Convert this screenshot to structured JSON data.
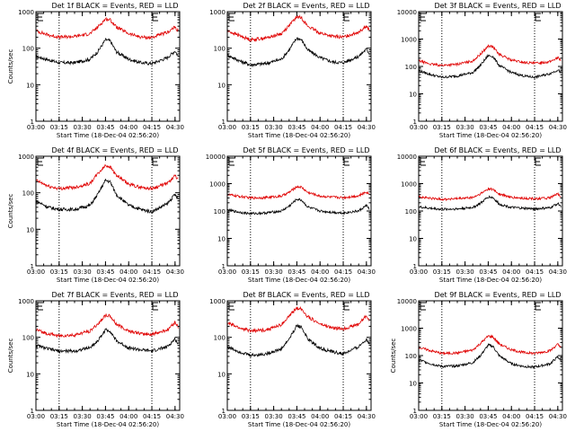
{
  "colors": {
    "events": "#000000",
    "lld": "#e00000",
    "axis": "#000000",
    "marker": "#000000"
  },
  "chart_data": [
    {
      "type": "line",
      "title": "Det 1f BLACK = Events, RED = LLD",
      "xlabel": "Start Time (18-Dec-04 02:56:20)",
      "ylabel": "Counts/sec",
      "yscale": "log",
      "ylim": [
        1,
        1000
      ],
      "y_ticks": [
        "1",
        "10",
        "100",
        "1000"
      ],
      "x_ticks": [
        "03:00",
        "03:15",
        "03:30",
        "03:45",
        "04:00",
        "04:15",
        "04:30"
      ],
      "xlim_hours": [
        3.0,
        4.55
      ],
      "marker_lines": [
        "03:15",
        "04:15"
      ],
      "grid": false,
      "legend": "none",
      "series": [
        {
          "name": "Events",
          "x": [
            "03:00",
            "03:08",
            "03:15",
            "03:25",
            "03:35",
            "03:40",
            "03:45",
            "03:48",
            "03:52",
            "04:00",
            "04:08",
            "04:15",
            "04:25",
            "04:30",
            "04:32"
          ],
          "values": [
            60,
            48,
            40,
            40,
            50,
            80,
            170,
            160,
            80,
            50,
            40,
            38,
            55,
            85,
            60
          ]
        },
        {
          "name": "LLD",
          "x": [
            "03:00",
            "03:08",
            "03:15",
            "03:25",
            "03:35",
            "03:40",
            "03:45",
            "03:48",
            "03:52",
            "04:00",
            "04:08",
            "04:15",
            "04:25",
            "04:30",
            "04:32"
          ],
          "values": [
            300,
            230,
            200,
            210,
            250,
            380,
            630,
            600,
            380,
            250,
            200,
            195,
            270,
            380,
            290
          ]
        }
      ]
    },
    {
      "type": "line",
      "title": "Det 2f BLACK = Events, RED = LLD",
      "xlabel": "Start Time (18-Dec-04 02:56:20)",
      "ylabel": "",
      "yscale": "log",
      "ylim": [
        1,
        1000
      ],
      "y_ticks": [
        "1",
        "10",
        "100",
        "1000"
      ],
      "x_ticks": [
        "03:00",
        "03:15",
        "03:30",
        "03:45",
        "04:00",
        "04:15",
        "04:30"
      ],
      "xlim_hours": [
        3.0,
        4.55
      ],
      "marker_lines": [
        "03:15",
        "04:15"
      ],
      "grid": false,
      "legend": "none",
      "series": [
        {
          "name": "Events",
          "x": [
            "03:00",
            "03:08",
            "03:15",
            "03:25",
            "03:35",
            "03:40",
            "03:45",
            "03:48",
            "03:52",
            "04:00",
            "04:08",
            "04:15",
            "04:25",
            "04:30",
            "04:32"
          ],
          "values": [
            65,
            45,
            35,
            38,
            50,
            90,
            190,
            170,
            90,
            55,
            42,
            40,
            60,
            95,
            70
          ]
        },
        {
          "name": "LLD",
          "x": [
            "03:00",
            "03:08",
            "03:15",
            "03:25",
            "03:35",
            "03:40",
            "03:45",
            "03:48",
            "03:52",
            "04:00",
            "04:08",
            "04:15",
            "04:25",
            "04:30",
            "04:32"
          ],
          "values": [
            300,
            220,
            170,
            190,
            250,
            420,
            720,
            680,
            400,
            260,
            210,
            200,
            280,
            400,
            300
          ]
        }
      ]
    },
    {
      "type": "line",
      "title": "Det 3f BLACK = Events, RED = LLD",
      "xlabel": "Start Time (18-Dec-04 02:56:20)",
      "ylabel": "",
      "yscale": "log",
      "ylim": [
        1,
        10000
      ],
      "y_ticks": [
        "1",
        "10",
        "100",
        "1000",
        "10000"
      ],
      "x_ticks": [
        "03:00",
        "03:15",
        "03:30",
        "03:45",
        "04:00",
        "04:15",
        "04:30"
      ],
      "xlim_hours": [
        3.0,
        4.55
      ],
      "marker_lines": [
        "03:15",
        "04:15"
      ],
      "grid": false,
      "legend": "none",
      "series": [
        {
          "name": "Events",
          "x": [
            "03:00",
            "03:08",
            "03:15",
            "03:25",
            "03:35",
            "03:40",
            "03:45",
            "03:48",
            "03:52",
            "04:00",
            "04:08",
            "04:15",
            "04:25",
            "04:30",
            "04:32"
          ],
          "values": [
            70,
            50,
            40,
            45,
            60,
            110,
            250,
            230,
            110,
            60,
            45,
            40,
            55,
            75,
            60
          ]
        },
        {
          "name": "LLD",
          "x": [
            "03:00",
            "03:08",
            "03:15",
            "03:25",
            "03:35",
            "03:40",
            "03:45",
            "03:48",
            "03:52",
            "04:00",
            "04:08",
            "04:15",
            "04:25",
            "04:30",
            "04:32"
          ],
          "values": [
            160,
            120,
            110,
            120,
            160,
            280,
            560,
            520,
            280,
            170,
            140,
            130,
            150,
            210,
            170
          ]
        }
      ]
    },
    {
      "type": "line",
      "title": "Det 4f BLACK = Events, RED = LLD",
      "xlabel": "Start Time (18-Dec-04 02:56:20)",
      "ylabel": "Counts/sec",
      "yscale": "log",
      "ylim": [
        1,
        1000
      ],
      "y_ticks": [
        "1",
        "10",
        "100",
        "1000"
      ],
      "x_ticks": [
        "03:00",
        "03:15",
        "03:30",
        "03:45",
        "04:00",
        "04:15",
        "04:30"
      ],
      "xlim_hours": [
        3.0,
        4.55
      ],
      "marker_lines": [
        "03:15",
        "04:15"
      ],
      "grid": false,
      "legend": "none",
      "series": [
        {
          "name": "Events",
          "x": [
            "03:00",
            "03:08",
            "03:15",
            "03:25",
            "03:35",
            "03:40",
            "03:45",
            "03:48",
            "03:52",
            "04:00",
            "04:08",
            "04:15",
            "04:25",
            "04:30",
            "04:32"
          ],
          "values": [
            60,
            40,
            35,
            35,
            45,
            90,
            220,
            200,
            90,
            45,
            35,
            30,
            50,
            90,
            65
          ]
        },
        {
          "name": "LLD",
          "x": [
            "03:00",
            "03:08",
            "03:15",
            "03:25",
            "03:35",
            "03:40",
            "03:45",
            "03:48",
            "03:52",
            "04:00",
            "04:08",
            "04:15",
            "04:25",
            "04:30",
            "04:32"
          ],
          "values": [
            220,
            150,
            130,
            140,
            180,
            330,
            560,
            520,
            300,
            170,
            140,
            130,
            180,
            290,
            230
          ]
        }
      ]
    },
    {
      "type": "line",
      "title": "Det 5f BLACK = Events, RED = LLD",
      "xlabel": "Start Time (18-Dec-04 02:56:20)",
      "ylabel": "",
      "yscale": "log",
      "ylim": [
        1,
        10000
      ],
      "y_ticks": [
        "1",
        "10",
        "100",
        "1000",
        "10000"
      ],
      "x_ticks": [
        "03:00",
        "03:15",
        "03:30",
        "03:45",
        "04:00",
        "04:15",
        "04:30"
      ],
      "xlim_hours": [
        3.0,
        4.55
      ],
      "marker_lines": [
        "03:15",
        "04:15"
      ],
      "grid": false,
      "legend": "none",
      "series": [
        {
          "name": "Events",
          "x": [
            "03:00",
            "03:08",
            "03:15",
            "03:25",
            "03:35",
            "03:40",
            "03:45",
            "03:48",
            "03:52",
            "04:00",
            "04:08",
            "04:15",
            "04:25",
            "04:30",
            "04:32"
          ],
          "values": [
            110,
            90,
            80,
            85,
            100,
            150,
            270,
            250,
            140,
            100,
            90,
            85,
            100,
            160,
            120
          ]
        },
        {
          "name": "LLD",
          "x": [
            "03:00",
            "03:08",
            "03:15",
            "03:25",
            "03:35",
            "03:40",
            "03:45",
            "03:48",
            "03:52",
            "04:00",
            "04:08",
            "04:15",
            "04:25",
            "04:30",
            "04:32"
          ],
          "values": [
            400,
            340,
            300,
            310,
            350,
            480,
            780,
            740,
            480,
            350,
            320,
            310,
            360,
            500,
            420
          ]
        }
      ]
    },
    {
      "type": "line",
      "title": "Det 6f BLACK = Events, RED = LLD",
      "xlabel": "Start Time (18-Dec-04 02:56:20)",
      "ylabel": "",
      "yscale": "log",
      "ylim": [
        1,
        10000
      ],
      "y_ticks": [
        "1",
        "10",
        "100",
        "1000",
        "10000"
      ],
      "x_ticks": [
        "03:00",
        "03:15",
        "03:30",
        "03:45",
        "04:00",
        "04:15",
        "04:30"
      ],
      "xlim_hours": [
        3.0,
        4.55
      ],
      "marker_lines": [
        "03:15",
        "04:15"
      ],
      "grid": false,
      "legend": "none",
      "series": [
        {
          "name": "Events",
          "x": [
            "03:00",
            "03:08",
            "03:15",
            "03:25",
            "03:35",
            "03:40",
            "03:45",
            "03:48",
            "03:52",
            "04:00",
            "04:08",
            "04:15",
            "04:25",
            "04:30",
            "04:32"
          ],
          "values": [
            140,
            125,
            115,
            120,
            135,
            190,
            330,
            310,
            180,
            135,
            125,
            120,
            130,
            190,
            150
          ]
        },
        {
          "name": "LLD",
          "x": [
            "03:00",
            "03:08",
            "03:15",
            "03:25",
            "03:35",
            "03:40",
            "03:45",
            "03:48",
            "03:52",
            "04:00",
            "04:08",
            "04:15",
            "04:25",
            "04:30",
            "04:32"
          ],
          "values": [
            330,
            290,
            270,
            280,
            310,
            420,
            650,
            620,
            420,
            310,
            290,
            280,
            300,
            420,
            350
          ]
        }
      ]
    },
    {
      "type": "line",
      "title": "Det 7f BLACK = Events, RED = LLD",
      "xlabel": "Start Time (18-Dec-04 02:56:20)",
      "ylabel": "Counts/sec",
      "yscale": "log",
      "ylim": [
        1,
        1000
      ],
      "y_ticks": [
        "1",
        "10",
        "100",
        "1000"
      ],
      "x_ticks": [
        "03:00",
        "03:15",
        "03:30",
        "03:45",
        "04:00",
        "04:15",
        "04:30"
      ],
      "xlim_hours": [
        3.0,
        4.55
      ],
      "marker_lines": [
        "03:15",
        "04:15"
      ],
      "grid": false,
      "legend": "none",
      "series": [
        {
          "name": "Events",
          "x": [
            "03:00",
            "03:08",
            "03:15",
            "03:25",
            "03:35",
            "03:40",
            "03:45",
            "03:48",
            "03:52",
            "04:00",
            "04:08",
            "04:15",
            "04:25",
            "04:30",
            "04:32"
          ],
          "values": [
            60,
            48,
            42,
            42,
            52,
            80,
            160,
            150,
            80,
            52,
            45,
            42,
            55,
            90,
            65
          ]
        },
        {
          "name": "LLD",
          "x": [
            "03:00",
            "03:08",
            "03:15",
            "03:25",
            "03:35",
            "03:40",
            "03:45",
            "03:48",
            "03:52",
            "04:00",
            "04:08",
            "04:15",
            "04:25",
            "04:30",
            "04:32"
          ],
          "values": [
            160,
            125,
            110,
            115,
            150,
            230,
            400,
            380,
            230,
            150,
            125,
            120,
            160,
            260,
            190
          ]
        }
      ]
    },
    {
      "type": "line",
      "title": "Det 8f BLACK = Events, RED = LLD",
      "xlabel": "Start Time (18-Dec-04 02:56:20)",
      "ylabel": "",
      "yscale": "log",
      "ylim": [
        1,
        1000
      ],
      "y_ticks": [
        "1",
        "10",
        "100",
        "1000"
      ],
      "x_ticks": [
        "03:00",
        "03:15",
        "03:30",
        "03:45",
        "04:00",
        "04:15",
        "04:30"
      ],
      "xlim_hours": [
        3.0,
        4.55
      ],
      "marker_lines": [
        "03:15",
        "04:15"
      ],
      "grid": false,
      "legend": "none",
      "series": [
        {
          "name": "Events",
          "x": [
            "03:00",
            "03:08",
            "03:15",
            "03:25",
            "03:35",
            "03:40",
            "03:45",
            "03:48",
            "03:52",
            "04:00",
            "04:08",
            "04:15",
            "04:25",
            "04:30",
            "04:32"
          ],
          "values": [
            55,
            40,
            32,
            35,
            48,
            90,
            210,
            190,
            90,
            50,
            40,
            35,
            55,
            90,
            65
          ]
        },
        {
          "name": "LLD",
          "x": [
            "03:00",
            "03:08",
            "03:15",
            "03:25",
            "03:35",
            "03:40",
            "03:45",
            "03:48",
            "03:52",
            "04:00",
            "04:08",
            "04:15",
            "04:25",
            "04:30",
            "04:32"
          ],
          "values": [
            250,
            180,
            150,
            160,
            220,
            380,
            640,
            600,
            370,
            230,
            180,
            170,
            230,
            400,
            280
          ]
        }
      ]
    },
    {
      "type": "line",
      "title": "Det 9f BLACK = Events, RED = LLD",
      "xlabel": "Start Time (18-Dec-04 02:56:20)",
      "ylabel": "Counts/sec",
      "yscale": "log",
      "ylim": [
        1,
        10000
      ],
      "y_ticks": [
        "1",
        "10",
        "100",
        "1000",
        "10000"
      ],
      "x_ticks": [
        "03:00",
        "03:15",
        "03:30",
        "03:45",
        "04:00",
        "04:15",
        "04:30"
      ],
      "xlim_hours": [
        3.0,
        4.55
      ],
      "marker_lines": [
        "03:15",
        "04:15"
      ],
      "grid": false,
      "legend": "none",
      "series": [
        {
          "name": "Events",
          "x": [
            "03:00",
            "03:08",
            "03:15",
            "03:25",
            "03:35",
            "03:40",
            "03:45",
            "03:48",
            "03:52",
            "04:00",
            "04:08",
            "04:15",
            "04:25",
            "04:30",
            "04:32"
          ],
          "values": [
            70,
            50,
            40,
            42,
            55,
            100,
            240,
            220,
            100,
            50,
            40,
            38,
            50,
            90,
            65
          ]
        },
        {
          "name": "LLD",
          "x": [
            "03:00",
            "03:08",
            "03:15",
            "03:25",
            "03:35",
            "03:40",
            "03:45",
            "03:48",
            "03:52",
            "04:00",
            "04:08",
            "04:15",
            "04:25",
            "04:30",
            "04:32"
          ],
          "values": [
            200,
            150,
            120,
            125,
            160,
            280,
            520,
            480,
            270,
            160,
            130,
            120,
            150,
            260,
            190
          ]
        }
      ]
    }
  ]
}
